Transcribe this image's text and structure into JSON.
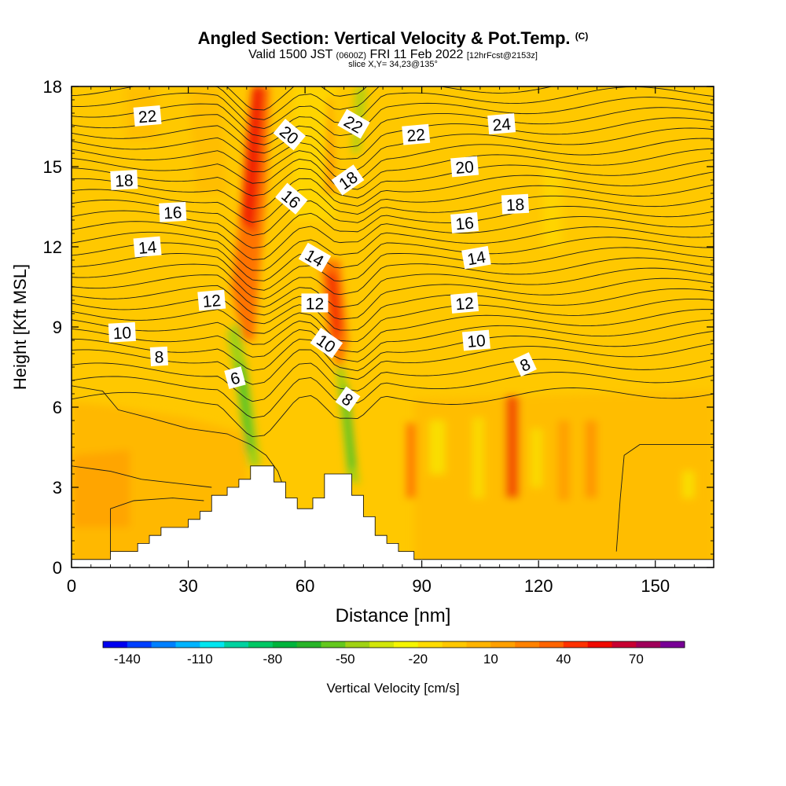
{
  "header": {
    "title": "Angled Section: Vertical Velocity & Pot.Temp.",
    "title_tag": "(C)",
    "valid_prefix": "Valid 1500 JST",
    "valid_utc": "(0600Z)",
    "valid_date": "FRI 11 Feb 2022",
    "forecast": "[12hrFcst@2153z]",
    "slice_info": "slice X,Y= 34,23@135°"
  },
  "chart_data": {
    "type": "heatmap",
    "title": "Angled Section: Vertical Velocity & Pot.Temp.",
    "xlabel": "Distance [nm]",
    "ylabel": "Height [Kft MSL]",
    "xlim": [
      0,
      165
    ],
    "ylim": [
      0,
      18
    ],
    "x_ticks": [
      0,
      30,
      60,
      90,
      120,
      150
    ],
    "y_ticks": [
      0,
      3,
      6,
      9,
      12,
      15,
      18
    ],
    "grid": false,
    "shaded_field": "Vertical Velocity [cm/s]",
    "colorbar": {
      "label": "Vertical Velocity [cm/s]",
      "min": -150,
      "max": 90,
      "step": 10,
      "tick_labels": [
        "-140",
        "-110",
        "-80",
        "-50",
        "-20",
        "10",
        "40",
        "70"
      ],
      "colors": [
        "#0000f0",
        "#0040ff",
        "#0080ff",
        "#00b4ff",
        "#00e6f0",
        "#00d2a0",
        "#00c864",
        "#00b43c",
        "#28b428",
        "#64c81e",
        "#a0d214",
        "#d2e60a",
        "#f5f500",
        "#ffdc00",
        "#ffc800",
        "#ffb400",
        "#ffa000",
        "#ff8200",
        "#ff6400",
        "#ff3200",
        "#f00a00",
        "#c80032",
        "#a0005a",
        "#780096"
      ]
    },
    "terrain_profile": [
      [
        0,
        0.3
      ],
      [
        10,
        0.3
      ],
      [
        10,
        0.6
      ],
      [
        17,
        0.6
      ],
      [
        17,
        0.9
      ],
      [
        20,
        0.9
      ],
      [
        20,
        1.2
      ],
      [
        23,
        1.2
      ],
      [
        23,
        1.5
      ],
      [
        30,
        1.5
      ],
      [
        30,
        1.8
      ],
      [
        33,
        1.8
      ],
      [
        33,
        2.1
      ],
      [
        36,
        2.1
      ],
      [
        36,
        2.7
      ],
      [
        40,
        2.7
      ],
      [
        40,
        3.0
      ],
      [
        43,
        3.0
      ],
      [
        43,
        3.3
      ],
      [
        46,
        3.3
      ],
      [
        46,
        3.8
      ],
      [
        52,
        3.8
      ],
      [
        52,
        3.2
      ],
      [
        55,
        3.2
      ],
      [
        55,
        2.6
      ],
      [
        58,
        2.6
      ],
      [
        58,
        2.2
      ],
      [
        62,
        2.2
      ],
      [
        62,
        2.6
      ],
      [
        65,
        2.6
      ],
      [
        65,
        3.5
      ],
      [
        72,
        3.5
      ],
      [
        72,
        2.7
      ],
      [
        75,
        2.7
      ],
      [
        75,
        1.9
      ],
      [
        78,
        1.9
      ],
      [
        78,
        1.2
      ],
      [
        81,
        1.2
      ],
      [
        81,
        0.9
      ],
      [
        84,
        0.9
      ],
      [
        84,
        0.6
      ],
      [
        88,
        0.6
      ],
      [
        88,
        0.3
      ],
      [
        165,
        0.3
      ]
    ],
    "theta_contour_labels": [
      {
        "text": "22",
        "x": 19.5,
        "y": 16.9,
        "angle": -5
      },
      {
        "text": "20",
        "x": 56,
        "y": 16.2,
        "angle": 40
      },
      {
        "text": "22",
        "x": 72.5,
        "y": 16.6,
        "angle": 30
      },
      {
        "text": "22",
        "x": 88.5,
        "y": 16.2,
        "angle": -5
      },
      {
        "text": "24",
        "x": 110.5,
        "y": 16.6,
        "angle": -5
      },
      {
        "text": "18",
        "x": 13.5,
        "y": 14.5,
        "angle": -3
      },
      {
        "text": "20",
        "x": 101,
        "y": 15.0,
        "angle": -5
      },
      {
        "text": "18",
        "x": 71,
        "y": 14.5,
        "angle": -35
      },
      {
        "text": "16",
        "x": 26,
        "y": 13.3,
        "angle": -3
      },
      {
        "text": "16",
        "x": 56.5,
        "y": 13.8,
        "angle": 40
      },
      {
        "text": "18",
        "x": 114,
        "y": 13.6,
        "angle": -3
      },
      {
        "text": "16",
        "x": 101,
        "y": 12.9,
        "angle": -5
      },
      {
        "text": "14",
        "x": 19.5,
        "y": 12.0,
        "angle": -5
      },
      {
        "text": "14",
        "x": 62.5,
        "y": 11.6,
        "angle": 30
      },
      {
        "text": "14",
        "x": 104,
        "y": 11.6,
        "angle": -10
      },
      {
        "text": "12",
        "x": 36,
        "y": 10.0,
        "angle": -5
      },
      {
        "text": "12",
        "x": 62.5,
        "y": 9.9,
        "angle": 0
      },
      {
        "text": "12",
        "x": 101,
        "y": 9.9,
        "angle": -5
      },
      {
        "text": "10",
        "x": 13,
        "y": 8.8,
        "angle": -3
      },
      {
        "text": "10",
        "x": 65.5,
        "y": 8.4,
        "angle": 35
      },
      {
        "text": "10",
        "x": 104,
        "y": 8.5,
        "angle": -5
      },
      {
        "text": "8",
        "x": 22.5,
        "y": 7.9,
        "angle": -3
      },
      {
        "text": "8",
        "x": 116.5,
        "y": 7.6,
        "angle": -25
      },
      {
        "text": "6",
        "x": 42,
        "y": 7.1,
        "angle": -15
      },
      {
        "text": "8",
        "x": 71,
        "y": 6.3,
        "angle": 35
      }
    ]
  }
}
